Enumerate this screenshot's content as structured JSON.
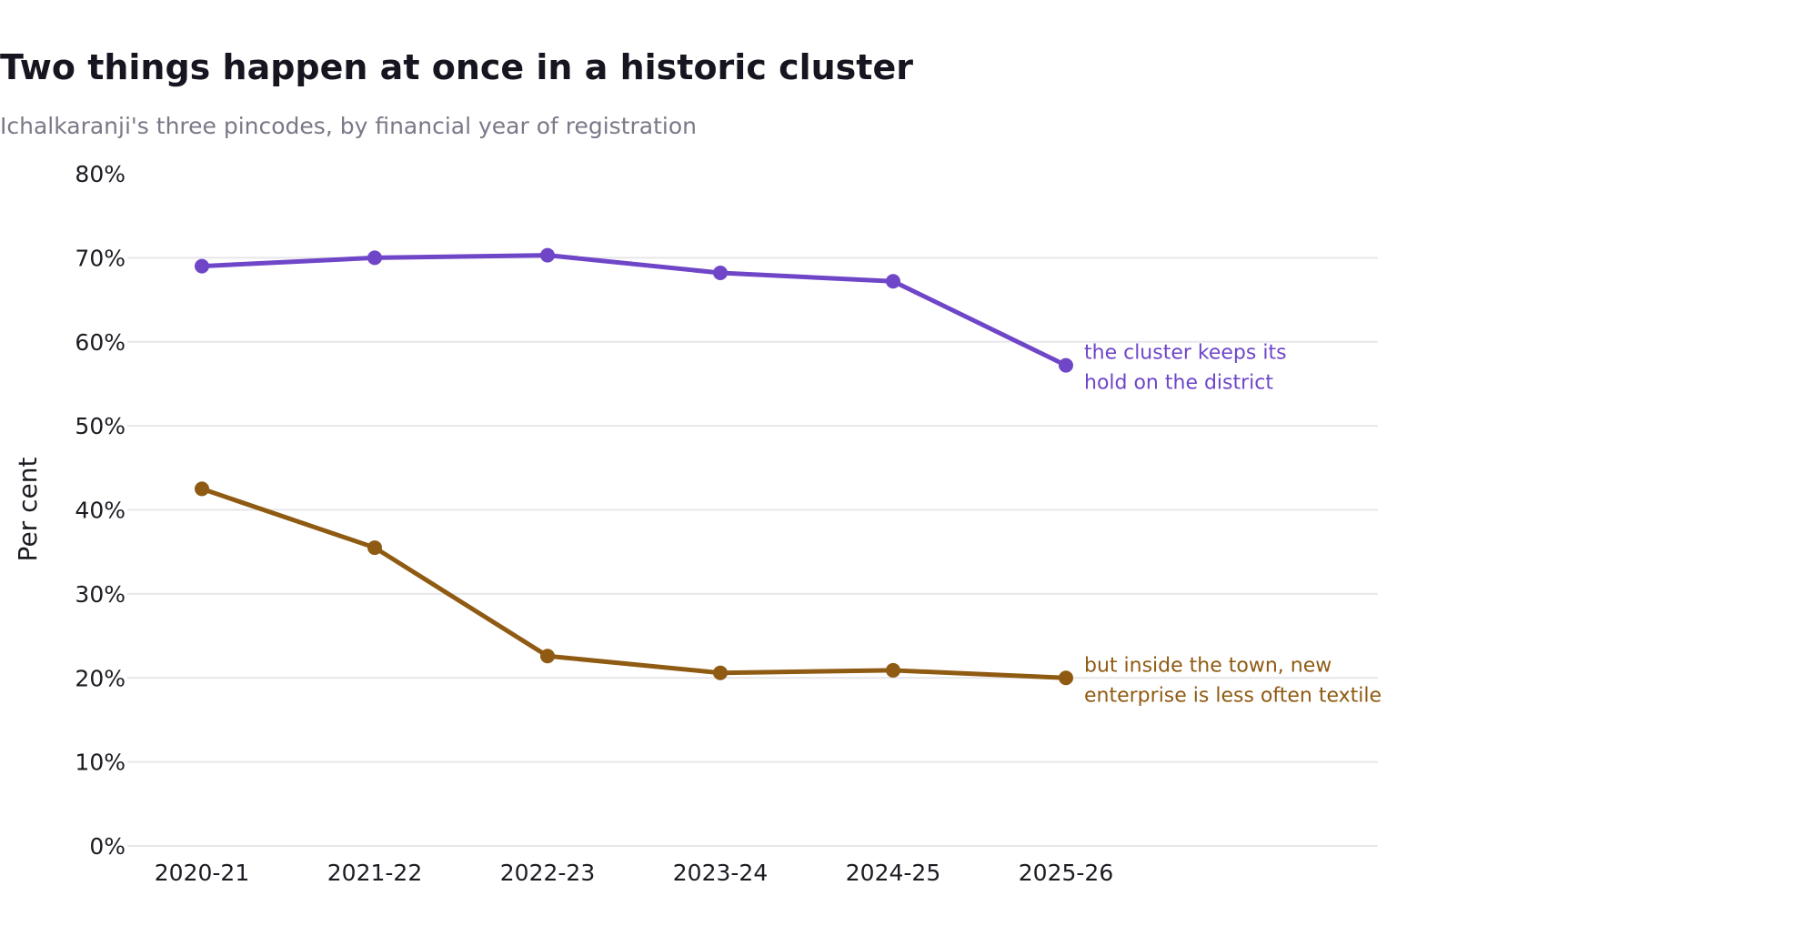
{
  "title": "Two things happen at once in a historic cluster",
  "subtitle": "Ichalkaranji's three pincodes, by financial year of registration",
  "chart_data": {
    "type": "line",
    "title": "Two things happen at once in a historic cluster",
    "subtitle": "Ichalkaranji's three pincodes, by financial year of registration",
    "xlabel": "",
    "ylabel": "Per cent",
    "categories": [
      "2020-21",
      "2021-22",
      "2022-23",
      "2023-24",
      "2024-25",
      "2025-26"
    ],
    "ylim": [
      0,
      80
    ],
    "yticks": [
      0,
      10,
      20,
      30,
      40,
      50,
      60,
      70,
      80
    ],
    "ytick_labels": [
      "0%",
      "10%",
      "20%",
      "30%",
      "40%",
      "50%",
      "60%",
      "70%",
      "80%"
    ],
    "grid": true,
    "legend": "none",
    "series": [
      {
        "color": "#6f46c8",
        "values": [
          69.0,
          70.0,
          70.3,
          68.2,
          67.2,
          57.2
        ],
        "annotation": [
          "the cluster keeps its",
          "hold on the district"
        ]
      },
      {
        "color": "#8f5a12",
        "values": [
          42.5,
          35.5,
          22.6,
          20.6,
          20.9,
          20.0
        ],
        "annotation": [
          "but inside the town, new",
          "enterprise is less often textile"
        ]
      }
    ]
  }
}
